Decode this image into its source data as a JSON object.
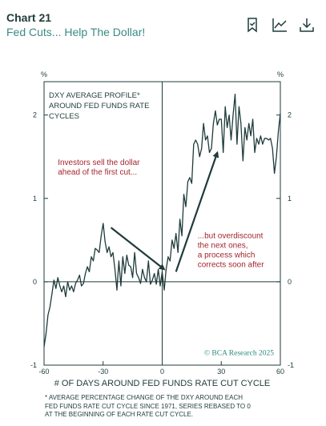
{
  "header": {
    "chart_number": "Chart 21",
    "title": "Fed Cuts... Help The Dollar!"
  },
  "icons": {
    "bookmark": "bookmark-check-icon",
    "trend": "line-chart-icon",
    "download": "download-icon"
  },
  "colors": {
    "line": "#1f3b3a",
    "accent": "#a3262f",
    "title": "#3a8a86",
    "watermark": "#2e8a7e"
  },
  "chart_data": {
    "type": "line",
    "panel_label": "DXY AVERAGE PROFILE* AROUND FED FUNDS RATE CYCLES",
    "panel_label_lines": [
      "DXY AVERAGE PROFILE*",
      "AROUND FED FUNDS RATE",
      "CYCLES"
    ],
    "xlabel": "# OF DAYS AROUND FED FUNDS RATE CUT CYCLE",
    "ylabel_left": "%",
    "ylabel_right": "%",
    "xlim": [
      -60,
      60
    ],
    "ylim": [
      -1,
      2.4
    ],
    "xticks": [
      -60,
      -30,
      0,
      30,
      60
    ],
    "xtick_labels": [
      "-60",
      "-30",
      "0",
      "30",
      "60"
    ],
    "yticks": [
      -1,
      0,
      1,
      2
    ],
    "ytick_labels": [
      "-1",
      "0",
      "1",
      "2"
    ],
    "zero_line": true,
    "vline_at": 0,
    "grid": false,
    "watermark": "© BCA Research 2025",
    "annotations": [
      {
        "text_lines": [
          "Investors sell the dollar",
          "ahead of the first cut..."
        ],
        "arrow_from": [
          -26,
          0.65
        ],
        "arrow_to": [
          1,
          0.15
        ]
      },
      {
        "text_lines": [
          "...but overdiscount",
          "the next ones,",
          "a process which",
          "corrects soon after"
        ],
        "arrow_from": [
          7,
          0.12
        ],
        "arrow_to": [
          28,
          1.55
        ]
      }
    ],
    "series": [
      {
        "x": [
          -60,
          -59,
          -58,
          -57,
          -56,
          -55,
          -54,
          -53,
          -52,
          -51,
          -50,
          -49,
          -48,
          -47,
          -46,
          -45,
          -44,
          -43,
          -42,
          -41,
          -40,
          -39,
          -38,
          -37,
          -36,
          -35,
          -34,
          -33,
          -32,
          -31,
          -30,
          -29,
          -28,
          -27,
          -26,
          -25,
          -24,
          -23,
          -22,
          -21,
          -20,
          -19,
          -18,
          -17,
          -16,
          -15,
          -14,
          -13,
          -12,
          -11,
          -10,
          -9,
          -8,
          -7,
          -6,
          -5,
          -4,
          -3,
          -2,
          -1,
          0,
          1,
          2,
          3,
          4,
          5,
          6,
          7,
          8,
          9,
          10,
          11,
          12,
          13,
          14,
          15,
          16,
          17,
          18,
          19,
          20,
          21,
          22,
          23,
          24,
          25,
          26,
          27,
          28,
          29,
          30,
          31,
          32,
          33,
          34,
          35,
          36,
          37,
          38,
          39,
          40,
          41,
          42,
          43,
          44,
          45,
          46,
          47,
          48,
          49,
          50,
          51,
          52,
          53,
          54,
          55,
          56,
          57,
          58,
          59,
          60
        ],
        "y": [
          -0.78,
          -0.62,
          -0.4,
          -0.3,
          -0.15,
          0.02,
          -0.08,
          0.05,
          -0.05,
          -0.12,
          -0.05,
          -0.18,
          0.0,
          -0.1,
          -0.05,
          -0.12,
          -0.02,
          0.02,
          0.08,
          -0.05,
          -0.02,
          0.1,
          0.18,
          0.12,
          0.3,
          0.25,
          0.4,
          0.38,
          0.35,
          0.55,
          0.7,
          0.48,
          0.35,
          0.42,
          0.3,
          0.35,
          0.15,
          -0.1,
          0.25,
          -0.05,
          0.3,
          0.1,
          0.32,
          0.2,
          0.18,
          0.05,
          0.35,
          0.1,
          0.05,
          -0.02,
          0.15,
          0.05,
          0.0,
          0.25,
          -0.03,
          0.02,
          0.1,
          -0.03,
          0.15,
          -0.05,
          0.12,
          -0.1,
          0.15,
          0.3,
          0.25,
          0.5,
          0.4,
          0.58,
          0.35,
          0.75,
          0.55,
          1.05,
          0.9,
          1.2,
          1.25,
          1.18,
          1.65,
          1.7,
          1.65,
          1.5,
          1.6,
          1.9,
          1.7,
          1.75,
          1.55,
          1.6,
          1.9,
          2.05,
          1.88,
          1.95,
          1.95,
          1.55,
          2.1,
          1.85,
          2.0,
          1.7,
          2.0,
          2.25,
          1.65,
          2.1,
          1.9,
          1.45,
          1.85,
          1.7,
          1.9,
          1.75,
          1.95,
          1.55,
          1.72,
          1.65,
          1.75,
          1.65,
          1.72,
          1.72,
          1.7,
          1.72,
          1.6,
          1.3,
          1.5,
          1.8,
          2.02
        ]
      }
    ]
  },
  "footnote_lines": [
    "* AVERAGE PERCENTAGE CHANGE OF THE DXY AROUND EACH",
    "FED FUNDS RATE CUT CYCLE SINCE 1971, SERIES REBASED TO 0",
    "AT THE BEGINNING OF EACH RATE CUT CYCLE."
  ]
}
